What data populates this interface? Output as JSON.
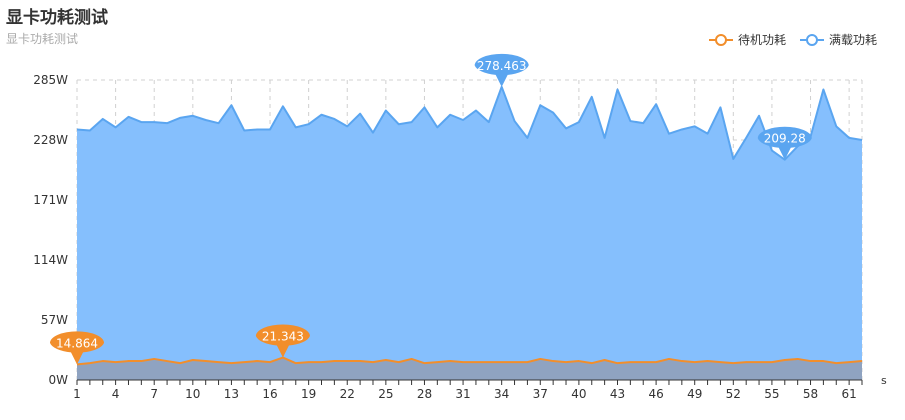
{
  "title": "显卡功耗测试",
  "subtitle": "显卡功耗测试",
  "legend": [
    {
      "name": "待机功耗",
      "color": "#f28e2b"
    },
    {
      "name": "满载功耗",
      "color": "#5aa5f0"
    }
  ],
  "chart_data": {
    "type": "area",
    "title": "显卡功耗测试",
    "subtitle": "显卡功耗测试",
    "xlabel": "s",
    "ylabel": "",
    "ylim": [
      0,
      285
    ],
    "yticks": [
      "0W",
      "57W",
      "114W",
      "171W",
      "228W",
      "285W"
    ],
    "xticks": [
      "1",
      "4",
      "7",
      "10",
      "13",
      "16",
      "19",
      "22",
      "25",
      "28",
      "31",
      "34",
      "37",
      "40",
      "43",
      "46",
      "49",
      "52",
      "55",
      "58",
      "61"
    ],
    "grid": true,
    "legend_position": "top-right",
    "x": [
      1,
      2,
      3,
      4,
      5,
      6,
      7,
      8,
      9,
      10,
      11,
      12,
      13,
      14,
      15,
      16,
      17,
      18,
      19,
      20,
      21,
      22,
      23,
      24,
      25,
      26,
      27,
      28,
      29,
      30,
      31,
      32,
      33,
      34,
      35,
      36,
      37,
      38,
      39,
      40,
      41,
      42,
      43,
      44,
      45,
      46,
      47,
      48,
      49,
      50,
      51,
      52,
      53,
      54,
      55,
      56,
      57,
      58,
      59,
      60,
      61,
      62
    ],
    "series": [
      {
        "name": "满载功耗",
        "color": "#5aa5f0",
        "fill": "#85bffd",
        "values": [
          238,
          237,
          248,
          240,
          250,
          245,
          245,
          244,
          249,
          251,
          247,
          244,
          261,
          237,
          238,
          238,
          260,
          240,
          243,
          252,
          248,
          241,
          253,
          235,
          256,
          243,
          245,
          259,
          240,
          252,
          247,
          256,
          245,
          278.463,
          246,
          230,
          261,
          254,
          239,
          245,
          269,
          230,
          276,
          246,
          244,
          262,
          234,
          238,
          241,
          234,
          259,
          210,
          230,
          251,
          218,
          209.28,
          222,
          231,
          276,
          241,
          230,
          228
        ],
        "annotations": [
          {
            "x": 34,
            "value": "278.463"
          },
          {
            "x": 56,
            "value": "209.28"
          }
        ]
      },
      {
        "name": "待机功耗",
        "color": "#f28e2b",
        "fill": "#8fa3c1",
        "values": [
          14.864,
          16,
          18,
          17,
          18,
          18,
          20,
          18,
          16,
          19,
          18,
          17,
          16,
          17,
          18,
          17,
          21.343,
          16,
          17,
          17,
          18,
          18,
          18,
          17,
          19,
          17,
          20,
          16,
          17,
          18,
          17,
          17,
          17,
          17,
          17,
          17,
          20,
          18,
          17,
          18,
          16,
          19,
          16,
          17,
          17,
          17,
          20,
          18,
          17,
          18,
          17,
          16,
          17,
          17,
          17,
          19,
          20,
          18,
          18,
          16,
          17,
          18
        ],
        "annotations": [
          {
            "x": 1,
            "value": "14.864"
          },
          {
            "x": 17,
            "value": "21.343"
          }
        ]
      }
    ]
  }
}
